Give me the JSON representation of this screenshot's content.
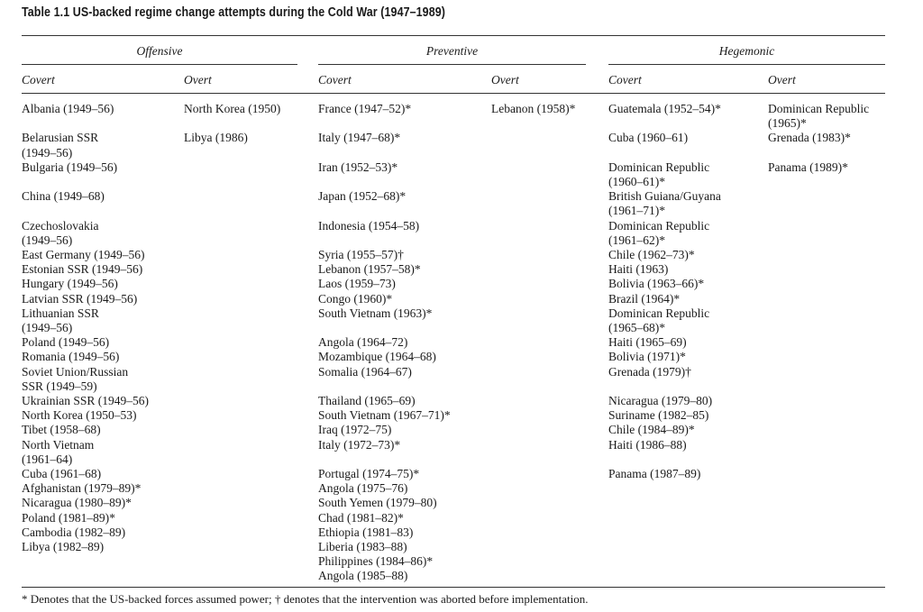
{
  "title": "Table 1.1  US-backed regime change attempts during the Cold War (1947–1989)",
  "groups": {
    "offensive": "Offensive",
    "preventive": "Preventive",
    "hegemonic": "Hegemonic"
  },
  "subheaders": {
    "covert": "Covert",
    "overt": "Overt"
  },
  "columns": {
    "offensive_covert": [
      [
        "Albania (1949–56)"
      ],
      [
        "Belarusian SSR",
        "(1949–56)"
      ],
      [
        "Bulgaria (1949–56)"
      ],
      [
        "China (1949–68)"
      ],
      [
        "Czechoslovakia",
        "(1949–56)"
      ],
      [
        "East Germany (1949–56)"
      ],
      [
        "Estonian SSR (1949–56)"
      ],
      [
        "Hungary (1949–56)"
      ],
      [
        "Latvian SSR (1949–56)"
      ],
      [
        "Lithuanian SSR",
        "(1949–56)"
      ],
      [
        "Poland (1949–56)"
      ],
      [
        "Romania (1949–56)"
      ],
      [
        "Soviet Union/Russian",
        "SSR (1949–59)"
      ],
      [
        "Ukrainian SSR (1949–56)"
      ],
      [
        "North Korea (1950–53)"
      ],
      [
        "Tibet (1958–68)"
      ],
      [
        "North Vietnam",
        "(1961–64)"
      ],
      [
        "Cuba (1961–68)"
      ],
      [
        "Afghanistan (1979–89)*"
      ],
      [
        "Nicaragua (1980–89)*"
      ],
      [
        "Poland (1981–89)*"
      ],
      [
        "Cambodia (1982–89)"
      ],
      [
        "Libya (1982–89)"
      ]
    ],
    "offensive_overt": [
      [
        "North Korea (1950)"
      ],
      [
        "Libya (1986)"
      ]
    ],
    "preventive_covert": [
      [
        "France (1947–52)*"
      ],
      [
        "Italy (1947–68)*"
      ],
      [
        "Iran (1952–53)*"
      ],
      [
        "Japan (1952–68)*"
      ],
      [
        "Indonesia (1954–58)"
      ],
      [
        "Syria (1955–57)†"
      ],
      [
        "Lebanon (1957–58)*"
      ],
      [
        "Laos (1959–73)"
      ],
      [
        "Congo (1960)*"
      ],
      [
        "South Vietnam (1963)*"
      ],
      [
        "Angola (1964–72)"
      ],
      [
        "Mozambique (1964–68)"
      ],
      [
        "Somalia (1964–67)"
      ],
      [
        "Thailand (1965–69)"
      ],
      [
        "South Vietnam (1967–71)*"
      ],
      [
        "Iraq (1972–75)"
      ],
      [
        "Italy (1972–73)*"
      ],
      [
        "Portugal (1974–75)*"
      ],
      [
        "Angola (1975–76)"
      ],
      [
        "South Yemen (1979–80)"
      ],
      [
        "Chad (1981–82)*"
      ],
      [
        "Ethiopia (1981–83)"
      ],
      [
        "Liberia (1983–88)"
      ],
      [
        "Philippines (1984–86)*"
      ],
      [
        "Angola (1985–88)"
      ]
    ],
    "preventive_overt": [
      [
        "Lebanon (1958)*"
      ]
    ],
    "hegemonic_covert": [
      [
        "Guatemala (1952–54)*"
      ],
      [
        "Cuba (1960–61)"
      ],
      [
        "Dominican Republic",
        "(1960–61)*"
      ],
      [
        "British Guiana/Guyana",
        "(1961–71)*"
      ],
      [
        "Dominican Republic",
        "(1961–62)*"
      ],
      [
        "Chile (1962–73)*"
      ],
      [
        "Haiti (1963)"
      ],
      [
        "Bolivia (1963–66)*"
      ],
      [
        "Brazil (1964)*"
      ],
      [
        "Dominican Republic",
        "(1965–68)*"
      ],
      [
        "Haiti (1965–69)"
      ],
      [
        "Bolivia (1971)*"
      ],
      [
        "Grenada (1979)†"
      ],
      [
        "Nicaragua (1979–80)"
      ],
      [
        "Suriname (1982–85)"
      ],
      [
        "Chile (1984–89)*"
      ],
      [
        "Haiti (1986–88)"
      ],
      [
        "Panama (1987–89)"
      ]
    ],
    "hegemonic_overt": [
      [
        "Dominican Republic",
        "(1965)*"
      ],
      [
        "Grenada (1983)*"
      ],
      [
        "Panama (1989)*"
      ]
    ]
  },
  "footnote": "* Denotes that the US-backed forces assumed power; † denotes that the intervention was aborted before implementation."
}
